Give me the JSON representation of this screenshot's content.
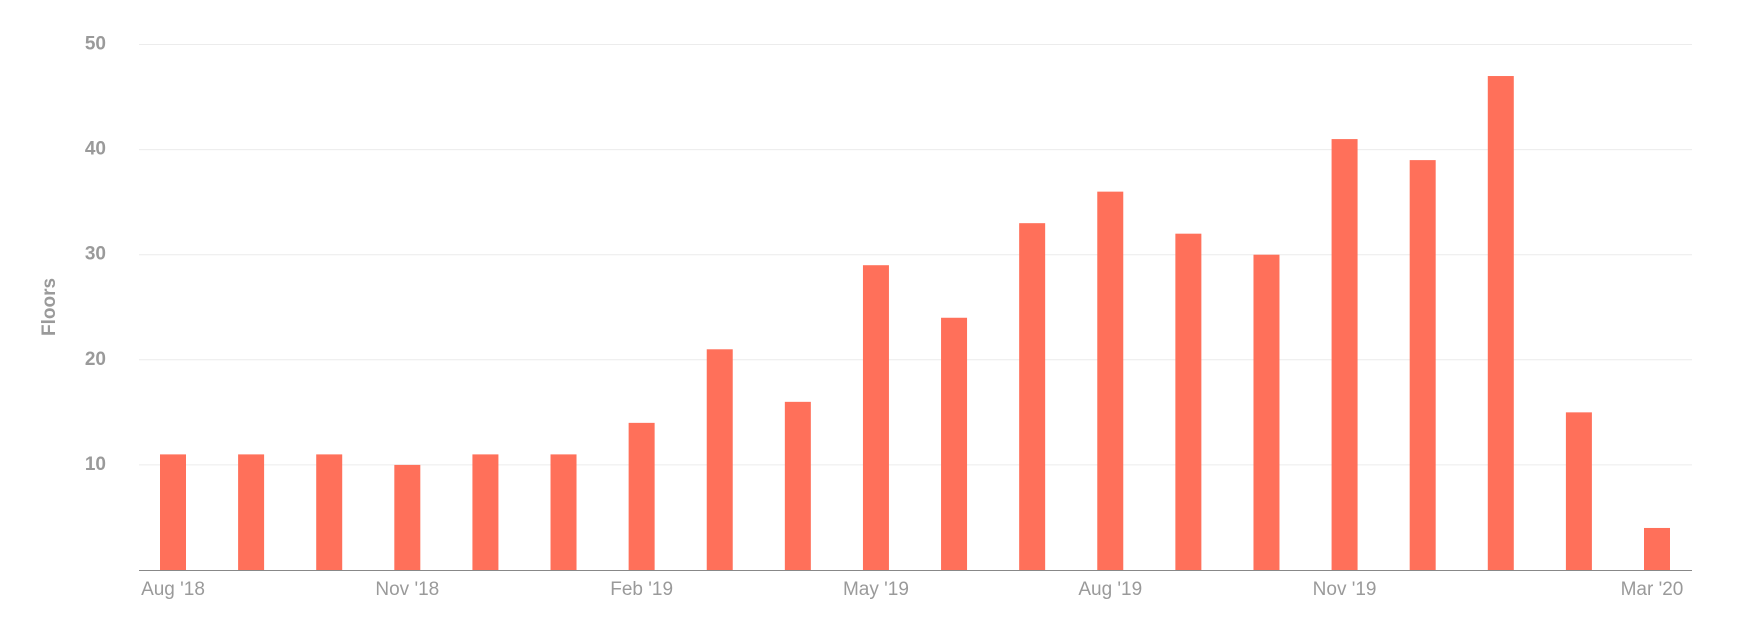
{
  "chart_data": {
    "type": "bar",
    "y_label": "Floors",
    "categories": [
      "Aug '18",
      null,
      null,
      "Nov '18",
      null,
      null,
      "Feb '19",
      null,
      null,
      "May '19",
      null,
      null,
      "Aug '19",
      null,
      null,
      "Nov '19",
      null,
      null,
      null,
      "Mar '20"
    ],
    "values": [
      11,
      11,
      11,
      10,
      11,
      11,
      14,
      21,
      16,
      29,
      24,
      33,
      36,
      32,
      30,
      41,
      39,
      47,
      15,
      4
    ],
    "color": "#ff705a",
    "ylim": [
      0,
      50
    ],
    "yticks": [
      10,
      20,
      30,
      40,
      50
    ],
    "grid": true
  }
}
